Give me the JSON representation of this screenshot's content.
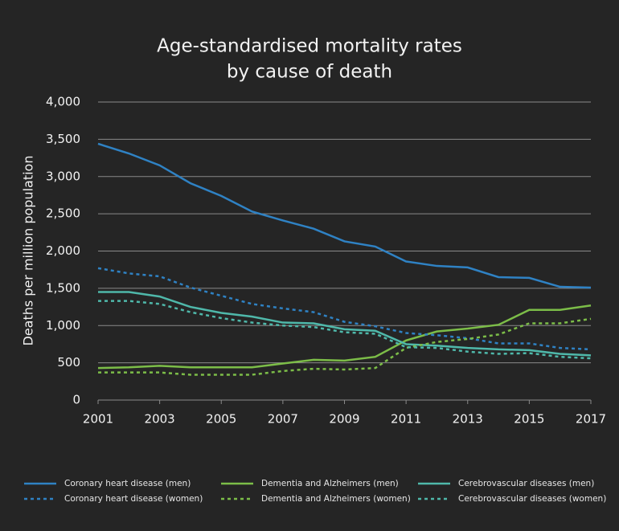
{
  "chart_data": {
    "type": "line",
    "title": [
      "Age-standardised mortality rates",
      "by cause of death"
    ],
    "y_label": "Deaths per million population",
    "x": [
      2001,
      2002,
      2003,
      2004,
      2005,
      2006,
      2007,
      2008,
      2009,
      2010,
      2011,
      2012,
      2013,
      2014,
      2015,
      2016,
      2017
    ],
    "xlim": [
      2001,
      2017
    ],
    "xticks": [
      2001,
      2003,
      2005,
      2007,
      2009,
      2011,
      2013,
      2015,
      2017
    ],
    "ylim": [
      0,
      4000
    ],
    "yticks": [
      0,
      500,
      {
        "value": 1000,
        "label": "1,000"
      },
      {
        "value": 1500,
        "label": "1,500"
      },
      {
        "value": 2000,
        "label": "2,000"
      },
      {
        "value": 2500,
        "label": "2,500"
      },
      {
        "value": 3000,
        "label": "3,000"
      },
      {
        "value": 3500,
        "label": "3,500"
      },
      {
        "value": 4000,
        "label": "4,000"
      }
    ],
    "grid": true,
    "legend": "bottom",
    "series": [
      {
        "name": "Coronary heart disease (men)",
        "color": "#2f82c4",
        "style": "solid",
        "values": [
          3440,
          3310,
          3150,
          2910,
          2740,
          2530,
          2410,
          2300,
          2130,
          2060,
          1860,
          1800,
          1780,
          1650,
          1640,
          1520,
          1510
        ]
      },
      {
        "name": "Dementia and Alzheimers (men)",
        "color": "#7cbd48",
        "style": "solid",
        "values": [
          430,
          440,
          460,
          440,
          440,
          440,
          490,
          540,
          530,
          580,
          800,
          920,
          960,
          1010,
          1210,
          1210,
          1270
        ]
      },
      {
        "name": "Cerebrovascular diseases (men)",
        "color": "#4fb8aa",
        "style": "solid",
        "values": [
          1450,
          1450,
          1390,
          1250,
          1170,
          1120,
          1040,
          1030,
          950,
          930,
          750,
          730,
          700,
          680,
          670,
          620,
          600
        ]
      },
      {
        "name": "Coronary heart disease (women)",
        "color": "#2f82c4",
        "style": "dashed",
        "values": [
          1770,
          1700,
          1660,
          1510,
          1400,
          1290,
          1230,
          1180,
          1050,
          990,
          900,
          870,
          830,
          760,
          760,
          700,
          680
        ]
      },
      {
        "name": "Dementia and Alzheimers (women)",
        "color": "#7cbd48",
        "style": "dashed",
        "values": [
          370,
          370,
          370,
          340,
          340,
          340,
          390,
          420,
          410,
          430,
          700,
          780,
          820,
          880,
          1030,
          1030,
          1090
        ]
      },
      {
        "name": "Cerebrovascular diseases (women)",
        "color": "#4fb8aa",
        "style": "dashed",
        "values": [
          1330,
          1330,
          1290,
          1180,
          1100,
          1040,
          1000,
          980,
          910,
          890,
          710,
          700,
          650,
          620,
          630,
          580,
          560
        ]
      }
    ]
  }
}
